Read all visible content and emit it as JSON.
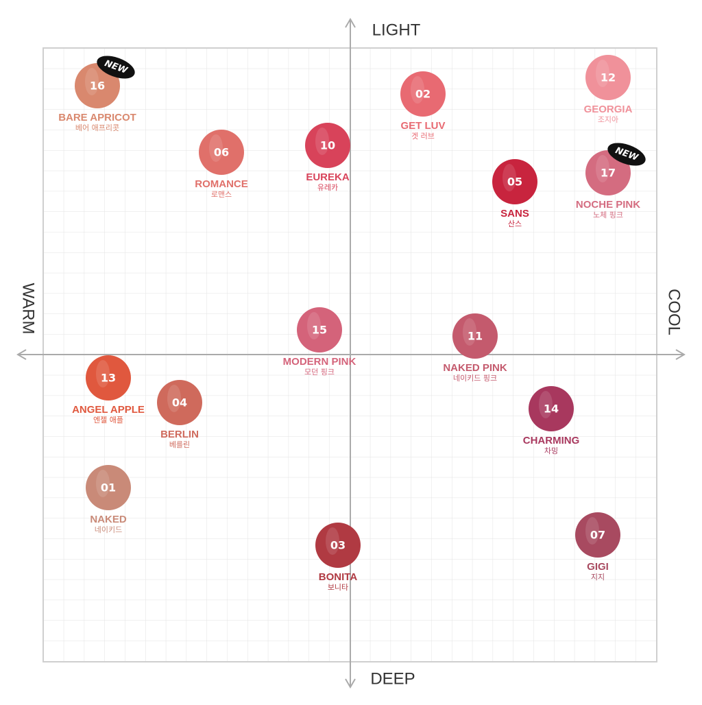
{
  "axes": {
    "top": "LIGHT",
    "bottom": "DEEP",
    "left": "WARM",
    "right": "COOL"
  },
  "nodes": [
    {
      "number": "16",
      "name": "BARE APRICOT",
      "name_ko": "베어 애프리콧",
      "badge": "NEW",
      "color": "#d9886e"
    },
    {
      "number": "06",
      "name": "ROMANCE",
      "name_ko": "로맨스",
      "color": "#e0706a"
    },
    {
      "number": "10",
      "name": "EUREKA",
      "name_ko": "유레카",
      "color": "#d8435a"
    },
    {
      "number": "02",
      "name": "GET LUV",
      "name_ko": "겟 러브",
      "color": "#e86a72"
    },
    {
      "number": "12",
      "name": "GEORGIA",
      "name_ko": "조지아",
      "color": "#f0919a"
    },
    {
      "number": "05",
      "name": "SANS",
      "name_ko": "산스",
      "color": "#c8243e"
    },
    {
      "number": "17",
      "name": "NOCHE PINK",
      "name_ko": "노체 핑크",
      "badge": "NEW",
      "color": "#d46c80"
    },
    {
      "number": "15",
      "name": "MODERN PINK",
      "name_ko": "모던 핑크",
      "color": "#d4637a"
    },
    {
      "number": "11",
      "name": "NAKED PINK",
      "name_ko": "네이키드 핑크",
      "color": "#c45a6d"
    },
    {
      "number": "13",
      "name": "ANGEL APPLE",
      "name_ko": "엔젤 애플",
      "color": "#e0583e"
    },
    {
      "number": "04",
      "name": "BERLIN",
      "name_ko": "베를린",
      "color": "#cf6a5c"
    },
    {
      "number": "14",
      "name": "CHARMING",
      "name_ko": "차밍",
      "color": "#a8385e"
    },
    {
      "number": "01",
      "name": "NAKED",
      "name_ko": "네이키드",
      "color": "#c98a78"
    },
    {
      "number": "03",
      "name": "BONITA",
      "name_ko": "보니타",
      "color": "#b03a42"
    },
    {
      "number": "07",
      "name": "GIGI",
      "name_ko": "지지",
      "color": "#a84a60"
    }
  ]
}
